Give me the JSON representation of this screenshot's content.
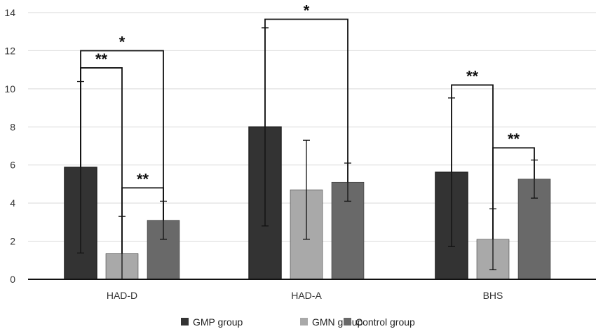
{
  "chart_data": {
    "type": "bar",
    "title": "",
    "xlabel": "",
    "ylabel": "",
    "ylim": [
      0,
      14
    ],
    "yticks": [
      0,
      2,
      4,
      6,
      8,
      10,
      12,
      14
    ],
    "grid": true,
    "legend_position": "bottom",
    "categories": [
      "HAD-D",
      "HAD-A",
      "BHS"
    ],
    "series": [
      {
        "name": "GMP group",
        "color": "#333333",
        "values": [
          5.88,
          8.0,
          5.62
        ],
        "error": [
          4.5,
          5.2,
          3.9
        ]
      },
      {
        "name": "GMN group",
        "color": "#a9a9a9",
        "values": [
          1.35,
          4.7,
          2.1
        ],
        "error": [
          1.95,
          2.6,
          1.6
        ]
      },
      {
        "name": "Control group",
        "color": "#696969",
        "values": [
          3.1,
          5.1,
          5.26
        ],
        "error": [
          1.0,
          1.0,
          1.0
        ]
      }
    ],
    "significance": [
      {
        "category": "HAD-D",
        "from": 0,
        "to": 2,
        "level": 12.0,
        "label": "*"
      },
      {
        "category": "HAD-D",
        "from": 0,
        "to": 1,
        "level": 11.1,
        "label": "**"
      },
      {
        "category": "HAD-D",
        "from": 1,
        "to": 2,
        "level": 4.8,
        "label": "**"
      },
      {
        "category": "HAD-A",
        "from": 0,
        "to": 2,
        "level": 13.65,
        "label": "*"
      },
      {
        "category": "BHS",
        "from": 0,
        "to": 1,
        "level": 10.2,
        "label": "**"
      },
      {
        "category": "BHS",
        "from": 1,
        "to": 2,
        "level": 6.9,
        "label": "**"
      }
    ]
  }
}
